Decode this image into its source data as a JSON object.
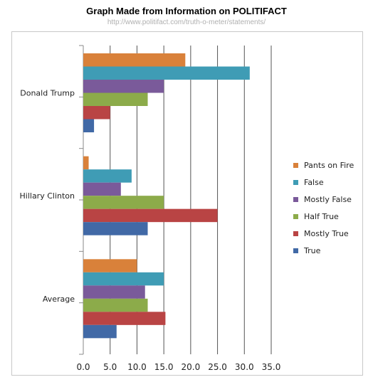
{
  "title": "Graph Made from Information on POLITIFACT",
  "subtitle": "http://www.politifact.com/truth-o-meter/statements/",
  "chart_data": {
    "type": "bar",
    "orientation": "horizontal",
    "categories": [
      "Donald Trump",
      "Hillary Clinton",
      "Average"
    ],
    "series": [
      {
        "name": "Pants on Fire",
        "color": "#d9813a",
        "values": [
          19,
          1,
          10
        ]
      },
      {
        "name": "False",
        "color": "#3f9cb5",
        "values": [
          31,
          9,
          15
        ]
      },
      {
        "name": "Mostly False",
        "color": "#7a5a9a",
        "values": [
          15,
          7,
          11.5
        ]
      },
      {
        "name": "Half True",
        "color": "#8cab4a",
        "values": [
          12,
          15,
          12
        ]
      },
      {
        "name": "Mostly True",
        "color": "#b94444",
        "values": [
          5,
          25,
          15.3
        ]
      },
      {
        "name": "True",
        "color": "#4169a6",
        "values": [
          2,
          12,
          6.2
        ]
      }
    ],
    "xlim": [
      0,
      35
    ],
    "xticks": [
      "0.0",
      "5.0",
      "10.0",
      "15.0",
      "20.0",
      "25.0",
      "30.0",
      "35.0"
    ],
    "grid": true,
    "legend_position": "right",
    "legend_order": [
      "Pants on Fire",
      "False",
      "Mostly False",
      "Half True",
      "Mostly True",
      "True"
    ]
  }
}
